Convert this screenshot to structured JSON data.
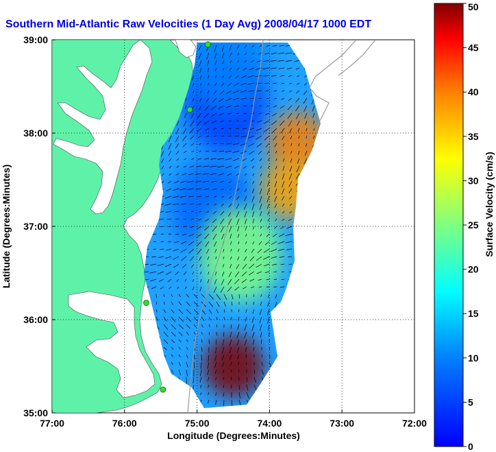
{
  "chart_data": {
    "type": "heatmap",
    "title": "Southern Mid-Atlantic Raw Velocities (1 Day Avg) 2008/04/17 1000 EDT",
    "xlabel": "Longitude (Degrees:Minutes)",
    "ylabel": "Latitude (Degrees:Minutes)",
    "x_ticks": [
      "77:00",
      "76:00",
      "75:00",
      "74:00",
      "73:00",
      "72:00"
    ],
    "y_ticks": [
      "39:00",
      "38:00",
      "37:00",
      "36:00",
      "35:00"
    ],
    "xlim": [
      -77,
      -72
    ],
    "ylim": [
      35,
      39
    ],
    "grid": true,
    "colorbar": {
      "label": "Surface Velocity (cm/s)",
      "range": [
        0,
        50
      ],
      "ticks": [
        "50",
        "45",
        "40",
        "35",
        "30",
        "25",
        "20",
        "15",
        "10",
        "5",
        "0"
      ],
      "colormap": "jet"
    },
    "speed_regions": [
      {
        "lon": -74.6,
        "lat": 38.3,
        "speed_cm_s": 5
      },
      {
        "lon": -74.8,
        "lat": 37.2,
        "speed_cm_s": 8
      },
      {
        "lon": -74.6,
        "lat": 38.75,
        "speed_cm_s": 10
      },
      {
        "lon": -73.6,
        "lat": 37.9,
        "speed_cm_s": 40
      },
      {
        "lon": -73.7,
        "lat": 37.4,
        "speed_cm_s": 38
      },
      {
        "lon": -74.4,
        "lat": 36.7,
        "speed_cm_s": 25
      },
      {
        "lon": -74.5,
        "lat": 35.5,
        "speed_cm_s": 50
      }
    ],
    "radar_sites": [
      {
        "lon": -74.85,
        "lat": 38.95
      },
      {
        "lon": -75.1,
        "lat": 38.25
      },
      {
        "lon": -75.7,
        "lat": 36.18
      },
      {
        "lon": -75.47,
        "lat": 35.25
      }
    ]
  }
}
